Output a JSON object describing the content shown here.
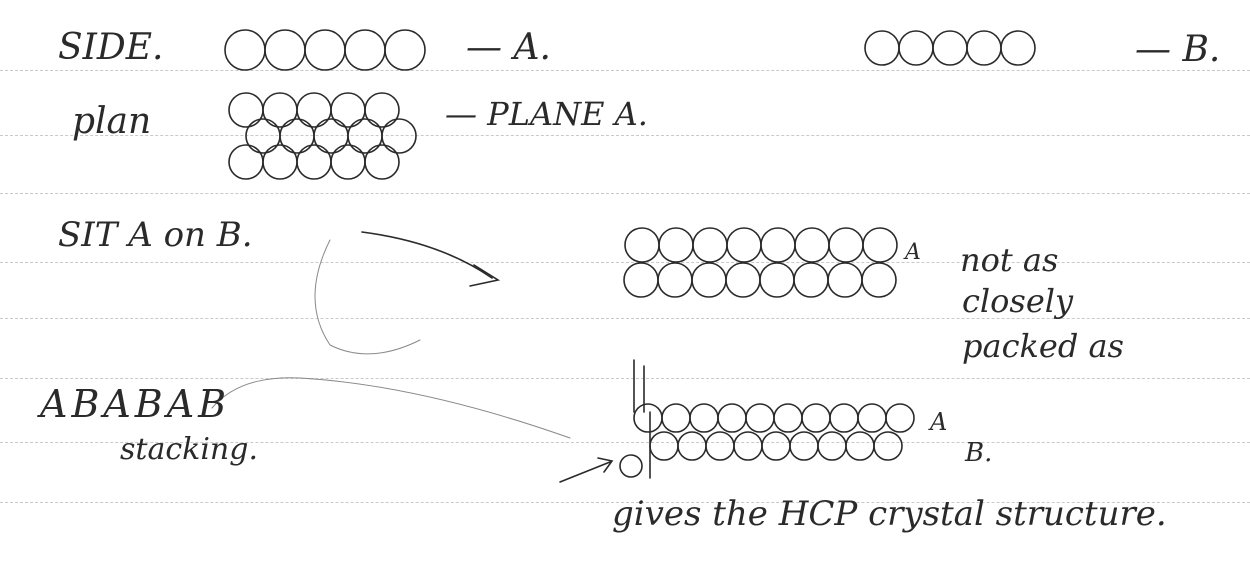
{
  "notes": {
    "line1": {
      "side_label": "SIDE.",
      "label_a": "— A.",
      "label_b": "— B."
    },
    "line2": {
      "plan_label": "plan",
      "plane_a_label": "— PLANE A."
    },
    "line3": {
      "sit_label": "SIT A on B.",
      "stack_label_a": "A"
    },
    "annotation": {
      "line1": "not as",
      "line2": "closely",
      "line3": "packed as"
    },
    "line5": {
      "abab_label": "ABABAB",
      "stacking_label": "stacking.",
      "stack_label_a": "A",
      "stack_label_b": "B."
    },
    "conclusion": "gives the HCP crystal structure."
  }
}
